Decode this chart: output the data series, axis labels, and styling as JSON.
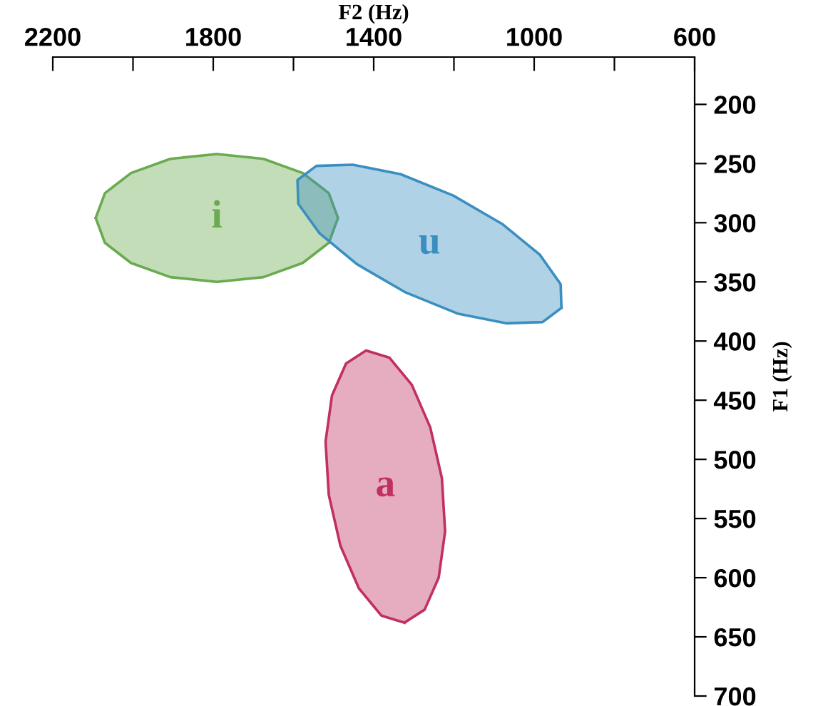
{
  "chart_data": {
    "type": "area",
    "xlabel": "F2 (Hz)",
    "ylabel": "F1 (Hz)",
    "xlim": [
      2200,
      600
    ],
    "ylim": [
      700,
      160
    ],
    "xticks": [
      2200,
      {
        "value": 2000,
        "label": null
      },
      1800,
      {
        "value": 1600,
        "label": null
      },
      1400,
      {
        "value": 1200,
        "label": null
      },
      1000,
      {
        "value": 800,
        "label": null
      },
      600
    ],
    "yticks": [
      200,
      250,
      300,
      350,
      400,
      450,
      500,
      550,
      600,
      650,
      700
    ],
    "grid": false,
    "legend": false,
    "series": [
      {
        "name": "i",
        "color": "#6aaa50",
        "x": [
          2093,
          2070,
          2005,
          1907,
          1791,
          1675,
          1577,
          1512,
          1489,
          1512,
          1577,
          1675,
          1791,
          1907,
          2005,
          2070
        ],
        "values": [
          296,
          317,
          334,
          346,
          350,
          346,
          334,
          317,
          296,
          275,
          258,
          246,
          242,
          246,
          258,
          275
        ]
      },
      {
        "name": "u",
        "color": "#3a8fc0",
        "x": [
          932,
          979,
          1070,
          1189,
          1320,
          1442,
          1535,
          1588,
          1590,
          1543,
          1452,
          1333,
          1202,
          1080,
          986,
          934
        ],
        "values": [
          372,
          384,
          385,
          377,
          359,
          335,
          309,
          284,
          264,
          252,
          251,
          259,
          277,
          301,
          327,
          352
        ]
      },
      {
        "name": "a",
        "color": "#c03060",
        "x": [
          1323,
          1273,
          1238,
          1222,
          1230,
          1259,
          1305,
          1361,
          1419,
          1469,
          1504,
          1520,
          1512,
          1483,
          1437,
          1381
        ],
        "values": [
          638,
          627,
          600,
          561,
          516,
          473,
          437,
          414,
          408,
          419,
          446,
          485,
          530,
          573,
          609,
          632
        ]
      }
    ]
  }
}
